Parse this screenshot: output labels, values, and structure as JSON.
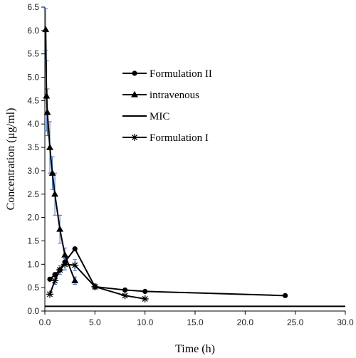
{
  "chart_data": {
    "type": "line",
    "title": "",
    "xlabel": "Time (h)",
    "ylabel": "Concentration (µg/ml)",
    "xlim": [
      0,
      30
    ],
    "ylim": [
      0,
      6.5
    ],
    "x_ticks": [
      "0.0",
      "5.0",
      "10.0",
      "15.0",
      "20.0",
      "25.0",
      "30.0"
    ],
    "y_ticks": [
      "0.0",
      "0.5",
      "1.0",
      "1.5",
      "2.0",
      "2.5",
      "3.0",
      "3.5",
      "4.0",
      "4.5",
      "5.0",
      "5.5",
      "6.0",
      "6.5"
    ],
    "grid": false,
    "legend_position": "center-right",
    "colors": {
      "series": "#000000",
      "error_bar": "#4472c4"
    },
    "series": [
      {
        "name": "Formulation II",
        "marker": "circle",
        "x": [
          0.5,
          1.0,
          1.5,
          2.0,
          3.0,
          5.0,
          8.0,
          10.0,
          24.0
        ],
        "y": [
          0.68,
          0.78,
          0.88,
          1.05,
          1.33,
          0.52,
          0.45,
          0.42,
          0.33
        ],
        "error": [
          0,
          0,
          0,
          0,
          0,
          0,
          0,
          0,
          0
        ]
      },
      {
        "name": "intravenous",
        "marker": "triangle",
        "x": [
          0.083,
          0.167,
          0.25,
          0.5,
          0.75,
          1.0,
          1.5,
          2.0,
          3.0
        ],
        "y": [
          6.02,
          4.6,
          4.25,
          3.5,
          2.95,
          2.5,
          1.75,
          1.2,
          0.65
        ],
        "error": [
          0.45,
          0.75,
          0.5,
          0.55,
          0.35,
          0.45,
          0.3,
          0.15,
          0.08
        ]
      },
      {
        "name": "MIC",
        "marker": "none",
        "x": [
          0,
          30
        ],
        "y": [
          0.1,
          0.1
        ],
        "error": [
          0,
          0
        ]
      },
      {
        "name": "Formulation I",
        "marker": "star",
        "x": [
          0.5,
          1.0,
          1.5,
          2.0,
          3.0,
          5.0,
          8.0,
          10.0
        ],
        "y": [
          0.36,
          0.65,
          0.88,
          1.0,
          0.98,
          0.52,
          0.33,
          0.26
        ],
        "error": [
          0,
          0.08,
          0.1,
          0.12,
          0.12,
          0.06,
          0,
          0
        ]
      }
    ]
  }
}
